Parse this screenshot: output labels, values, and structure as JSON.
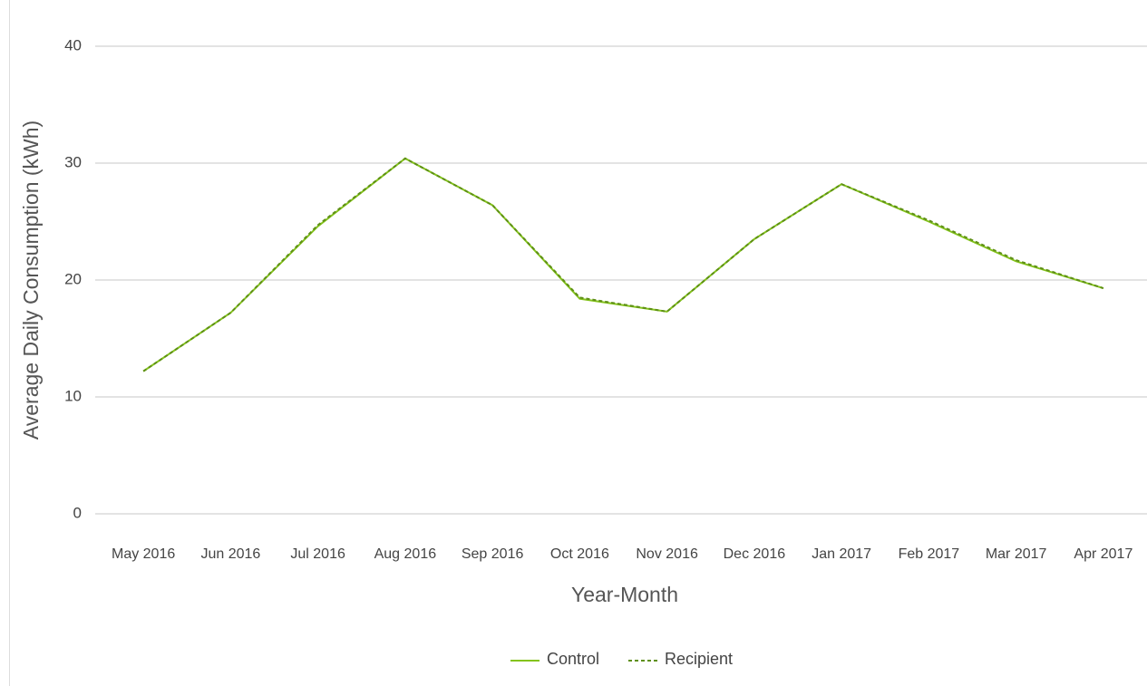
{
  "chart_data": {
    "type": "line",
    "x_label": "Year-Month",
    "y_label": "Average Daily Consumption (kWh)",
    "categories": [
      "May 2016",
      "Jun 2016",
      "Jul 2016",
      "Aug 2016",
      "Sep 2016",
      "Oct 2016",
      "Nov 2016",
      "Dec 2016",
      "Jan 2017",
      "Feb 2017",
      "Mar 2017",
      "Apr 2017"
    ],
    "series": [
      {
        "name": "Control",
        "color": "#84c31c",
        "dash": false,
        "values": [
          12.2,
          17.2,
          24.6,
          30.4,
          26.4,
          18.4,
          17.3,
          23.5,
          28.2,
          25.0,
          21.6,
          19.3
        ]
      },
      {
        "name": "Recipient",
        "color": "#5e8f16",
        "dash": true,
        "values": [
          12.2,
          17.2,
          24.7,
          30.4,
          26.4,
          18.5,
          17.3,
          23.5,
          28.2,
          25.1,
          21.7,
          19.3
        ]
      }
    ],
    "ylim": [
      0,
      40
    ],
    "yticks": [
      0,
      10,
      20,
      30,
      40
    ],
    "grid": true,
    "legend": "bottom"
  }
}
